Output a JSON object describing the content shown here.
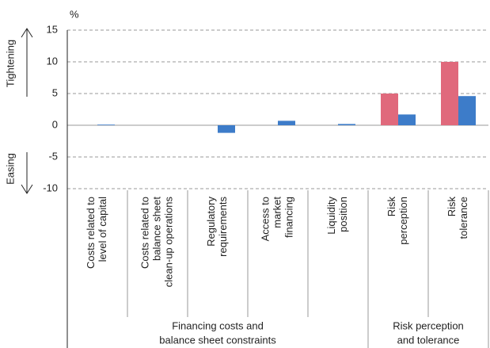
{
  "chart_data": {
    "type": "bar",
    "y_unit": "%",
    "annotations": [
      "Tightening",
      "Easing"
    ],
    "categories": [
      [
        "Costs related to",
        "level of capital"
      ],
      [
        "Costs related to",
        "balance sheet",
        "clean-up operations"
      ],
      [
        "Regulatory",
        "requirements"
      ],
      [
        "Access to",
        "market",
        "financing"
      ],
      [
        "Liquidity",
        "position"
      ],
      [
        "Risk",
        "perception"
      ],
      [
        "Risk",
        "tolerance"
      ]
    ],
    "groups": [
      {
        "label": [
          "Financing costs and",
          "balance sheet constraints"
        ],
        "span": 5
      },
      {
        "label": [
          "Risk perception",
          "and tolerance"
        ],
        "span": 2
      }
    ],
    "series": [
      {
        "color": "#e0697c",
        "values": [
          0,
          0,
          0,
          0,
          0,
          5,
          10
        ]
      },
      {
        "color": "#3d7cc9",
        "values": [
          0.1,
          0,
          -1.2,
          0.7,
          0.2,
          1.7,
          4.6
        ]
      }
    ],
    "ylim": [
      -10,
      15
    ],
    "yticks": [
      -10,
      -5,
      0,
      5,
      10,
      15
    ],
    "grid": true
  }
}
